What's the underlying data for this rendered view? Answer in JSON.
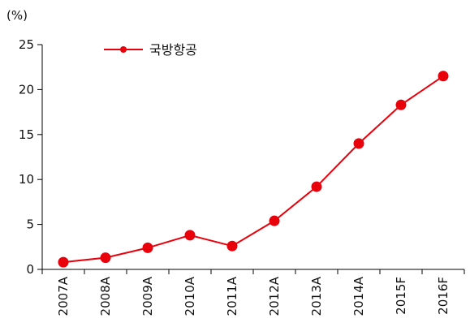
{
  "chart_data": {
    "type": "line",
    "unit_label": "(%)",
    "categories": [
      "2007A",
      "2008A",
      "2009A",
      "2010A",
      "2011A",
      "2012A",
      "2013A",
      "2014A",
      "2015F",
      "2016F"
    ],
    "series": [
      {
        "name": "국방항공",
        "values": [
          0.8,
          1.3,
          2.4,
          3.8,
          2.6,
          5.4,
          9.2,
          14.0,
          18.3,
          21.5
        ],
        "color": "#e8000b"
      }
    ],
    "ylim": [
      0,
      25
    ],
    "yticks": [
      "0",
      "5",
      "10",
      "15",
      "20",
      "25"
    ],
    "grid": false,
    "legend_position": "top-left"
  }
}
